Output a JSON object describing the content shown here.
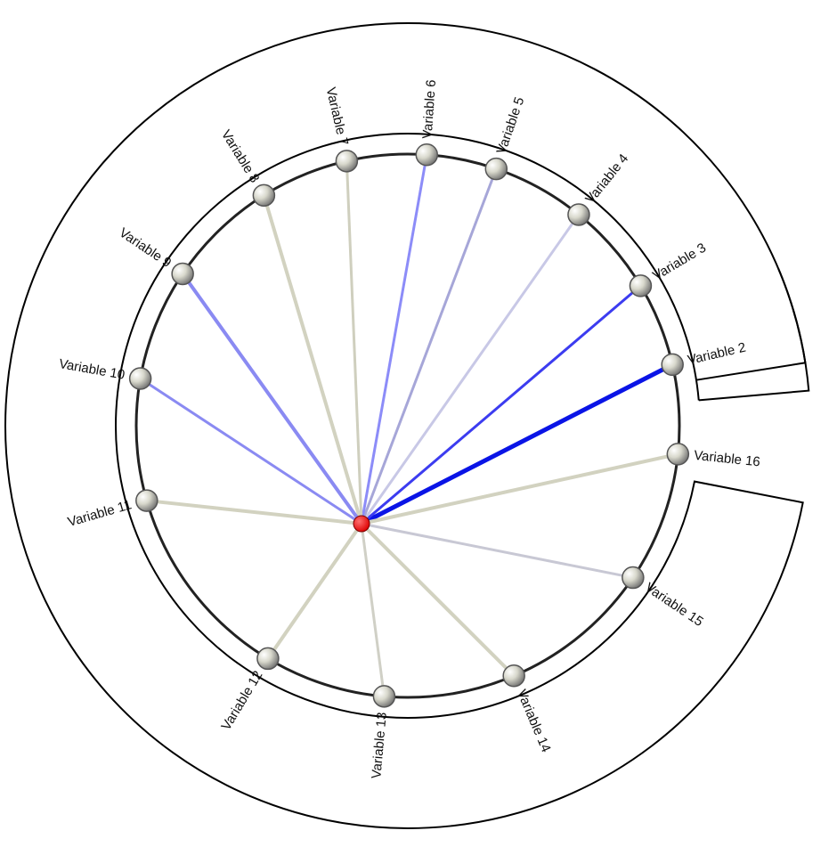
{
  "center_node": {
    "color": "#ff0000"
  },
  "nodes": [
    {
      "label": "Variable 2",
      "angle": -13,
      "line_color": "#0a14e6",
      "line_weight": 5
    },
    {
      "label": "Variable 3",
      "angle": -31,
      "line_color": "#3c3cf0",
      "line_weight": 3
    },
    {
      "label": "Variable 4",
      "angle": -51,
      "line_color": "#c8c8e6",
      "line_weight": 3
    },
    {
      "label": "Variable 5",
      "angle": -71,
      "line_color": "#a6a6d8",
      "line_weight": 3
    },
    {
      "label": "Variable 6",
      "angle": -86,
      "line_color": "#8c8cf8",
      "line_weight": 3
    },
    {
      "label": "Variable 7",
      "angle": -103,
      "line_color": "#cfcfbe",
      "line_weight": 3
    },
    {
      "label": "Variable 8",
      "angle": -122,
      "line_color": "#d2d2c0",
      "line_weight": 4
    },
    {
      "label": "Variable 9",
      "angle": -146,
      "line_color": "#8a8af2",
      "line_weight": 4
    },
    {
      "label": "Variable 10",
      "angle": -170,
      "line_color": "#8a8af2",
      "line_weight": 3
    },
    {
      "label": "Variable 11",
      "angle": 164,
      "line_color": "#d2d2c0",
      "line_weight": 4
    },
    {
      "label": "Variable 12",
      "angle": 121,
      "line_color": "#d2d2c0",
      "line_weight": 4
    },
    {
      "label": "Variable 13",
      "angle": 95,
      "line_color": "#d0d0c6",
      "line_weight": 3
    },
    {
      "label": "Variable 14",
      "angle": 67,
      "line_color": "#d2d2c0",
      "line_weight": 4
    },
    {
      "label": "Variable 15",
      "angle": 34,
      "line_color": "#c8c8d4",
      "line_weight": 3
    },
    {
      "label": "Variable 16",
      "angle": 6,
      "line_color": "#d2d2c0",
      "line_weight": 4
    }
  ]
}
